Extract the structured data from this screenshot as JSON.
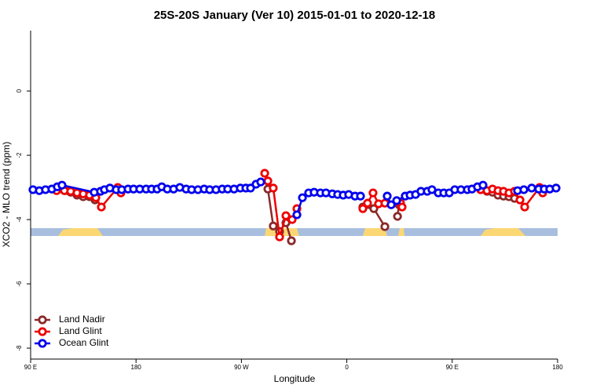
{
  "chart_data": {
    "type": "line",
    "title": "25S-20S January (Ver 10)   2015-01-01 to 2020-12-18",
    "x_label": "Longitude",
    "y_label": "XCO2 - MLO trend (ppm)",
    "xlim": [
      90,
      540
    ],
    "xticks": [
      {
        "value": 90,
        "label": "90 E"
      },
      180,
      {
        "value": 270,
        "label": "90 W"
      },
      {
        "value": 360,
        "label": "0"
      },
      {
        "value": 450,
        "label": "90 E"
      },
      {
        "value": 540,
        "label": "180"
      }
    ],
    "ylim": [
      -8.34,
      1.88
    ],
    "yticks": [
      -8,
      -6,
      -4,
      -2,
      0
    ],
    "legend": "bottom-left",
    "series": [
      {
        "name": "Land Nadir",
        "color": "#8b2a2a",
        "x": [
          119.5,
          124.2,
          129.6,
          134.9,
          140.3,
          145.0,
          null,
          292.6,
          297.2,
          302.6,
          308.0,
          312.7,
          null,
          373.7,
          383.1,
          392.5,
          null,
          403.3,
          404.6,
          null,
          474.3,
          479.7,
          484.4,
          489.1,
          493.8,
          498.5,
          503.2
        ],
        "values": [
          -3.1,
          -3.15,
          -3.24,
          -3.29,
          -3.29,
          -3.39,
          null,
          -3.05,
          -4.2,
          -4.37,
          -4.1,
          -4.66,
          null,
          -3.61,
          -3.66,
          -4.22,
          null,
          -3.9,
          -3.54,
          null,
          -3.07,
          -3.12,
          -3.15,
          -3.24,
          -3.27,
          -3.29,
          -3.34
        ]
      },
      {
        "name": "Land Glint",
        "color": "#ee0000",
        "x": [
          112.2,
          118.8,
          124.2,
          129.6,
          134.9,
          140.3,
          145.7,
          150.4,
          164.4,
          167.1,
          null,
          289.9,
          292.6,
          297.2,
          302.6,
          308.0,
          313.3,
          317.4,
          null,
          373.7,
          377.7,
          382.4,
          387.1,
          392.5,
          405.9,
          407.2,
          null,
          474.3,
          479.7,
          484.4,
          489.1,
          493.8,
          498.5,
          503.2,
          507.9,
          511.9,
          524.6,
          527.3
        ],
        "values": [
          -3.1,
          -3.1,
          -3.12,
          -3.17,
          -3.2,
          -3.24,
          -3.32,
          -3.61,
          -3.0,
          -3.17,
          null,
          -2.56,
          -2.8,
          -3.02,
          -4.54,
          -3.88,
          -4.0,
          -3.66,
          null,
          -3.66,
          -3.49,
          -3.17,
          -3.51,
          -3.49,
          -3.49,
          -3.61,
          null,
          -3.07,
          -3.1,
          -3.05,
          -3.1,
          -3.12,
          -3.17,
          -3.12,
          -3.39,
          -3.61,
          -3.0,
          -3.17
        ]
      },
      {
        "name": "Ocean Glint",
        "color": "#0000ee",
        "x": [
          92.0,
          97.4,
          102.7,
          108.1,
          112.8,
          116.8,
          144.3,
          149.7,
          153.0,
          157.7,
          163.1,
          167.8,
          173.2,
          177.9,
          183.2,
          188.6,
          193.3,
          198.0,
          202.0,
          206.7,
          212.1,
          217.4,
          222.8,
          227.5,
          232.9,
          238.2,
          242.9,
          248.3,
          253.6,
          258.3,
          263.7,
          269.1,
          273.8,
          277.8,
          282.5,
          286.5,
          null,
          317.4,
          322.1,
          327.4,
          332.1,
          337.5,
          342.2,
          347.6,
          352.2,
          356.9,
          361.6,
          367.0,
          371.7,
          null,
          394.5,
          397.9,
          402.6,
          409.9,
          414.0,
          418.7,
          423.3,
          428.7,
          432.7,
          438.1,
          442.8,
          447.5,
          452.2,
          457.5,
          462.9,
          466.9,
          471.6,
          476.3,
          null,
          505.8,
          511.2,
          517.9,
          523.9,
          528.6,
          533.3,
          538.7
        ],
        "values": [
          -3.07,
          -3.1,
          -3.07,
          -3.05,
          -2.98,
          -2.93,
          -3.15,
          -3.12,
          -3.07,
          -3.02,
          -3.07,
          -3.07,
          -3.05,
          -3.05,
          -3.05,
          -3.05,
          -3.05,
          -3.05,
          -2.98,
          -3.05,
          -3.05,
          -3.0,
          -3.05,
          -3.07,
          -3.07,
          -3.05,
          -3.07,
          -3.07,
          -3.05,
          -3.05,
          -3.05,
          -3.02,
          -3.02,
          -3.02,
          -2.9,
          -2.83,
          null,
          -3.85,
          -3.32,
          -3.17,
          -3.15,
          -3.17,
          -3.17,
          -3.2,
          -3.22,
          -3.24,
          -3.22,
          -3.27,
          -3.27,
          null,
          -3.27,
          -3.54,
          -3.41,
          -3.27,
          -3.24,
          -3.22,
          -3.12,
          -3.12,
          -3.07,
          -3.17,
          -3.17,
          -3.17,
          -3.07,
          -3.07,
          -3.07,
          -3.05,
          -2.98,
          -2.93,
          null,
          -3.1,
          -3.07,
          -3.02,
          -3.05,
          -3.05,
          -3.05,
          -3.02
        ]
      }
    ]
  }
}
